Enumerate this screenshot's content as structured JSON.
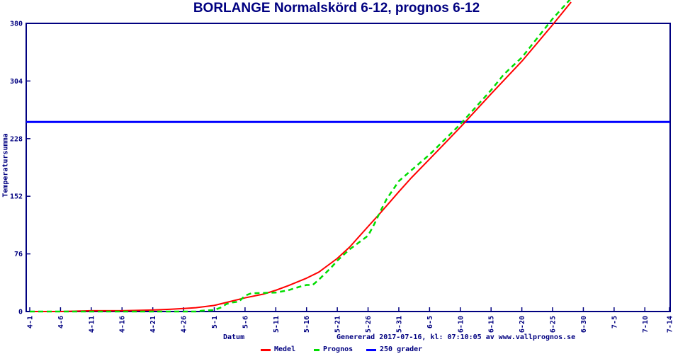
{
  "title": "BORLANGE Normalskörd 6-12, prognos 6-12",
  "footer": {
    "generated": "Genererad 2017-07-16, kl: 07:10:05 av www.vallprognos.se"
  },
  "colors": {
    "axis": "#000080",
    "text": "#000080",
    "medel": "#ff0000",
    "prognos": "#00dd00",
    "threshold": "#0000ff",
    "background": "#ffffff"
  },
  "chart_data": {
    "type": "line",
    "title": "BORLANGE Normalskörd 6-12, prognos 6-12",
    "xlabel": "Datum",
    "ylabel": "Temperatursumma",
    "ylim": [
      0,
      380
    ],
    "xlim_days": [
      0,
      104
    ],
    "grid": false,
    "legend_position": "bottom",
    "y_ticks": [
      0,
      76,
      152,
      228,
      304,
      380
    ],
    "x_ticks": [
      {
        "label": "4-1",
        "day": 0
      },
      {
        "label": "4-6",
        "day": 5
      },
      {
        "label": "4-11",
        "day": 10
      },
      {
        "label": "4-16",
        "day": 15
      },
      {
        "label": "4-21",
        "day": 20
      },
      {
        "label": "4-26",
        "day": 25
      },
      {
        "label": "5-1",
        "day": 30
      },
      {
        "label": "5-6",
        "day": 35
      },
      {
        "label": "5-11",
        "day": 40
      },
      {
        "label": "5-16",
        "day": 45
      },
      {
        "label": "5-21",
        "day": 50
      },
      {
        "label": "5-26",
        "day": 55
      },
      {
        "label": "5-31",
        "day": 60
      },
      {
        "label": "6-5",
        "day": 65
      },
      {
        "label": "6-10",
        "day": 70
      },
      {
        "label": "6-15",
        "day": 75
      },
      {
        "label": "6-20",
        "day": 80
      },
      {
        "label": "6-25",
        "day": 85
      },
      {
        "label": "6-30",
        "day": 90
      },
      {
        "label": "7-5",
        "day": 95
      },
      {
        "label": "7-10",
        "day": 100
      },
      {
        "label": "7-14",
        "day": 104
      }
    ],
    "series": [
      {
        "name": "Medel",
        "color": "#ff0000",
        "style": "solid",
        "width": 2,
        "points": [
          [
            0,
            0
          ],
          [
            5,
            0
          ],
          [
            10,
            1
          ],
          [
            15,
            1
          ],
          [
            20,
            2
          ],
          [
            23,
            3
          ],
          [
            25,
            4
          ],
          [
            27,
            5
          ],
          [
            30,
            8
          ],
          [
            32,
            12
          ],
          [
            35,
            18
          ],
          [
            38,
            23
          ],
          [
            40,
            28
          ],
          [
            42,
            34
          ],
          [
            45,
            44
          ],
          [
            47,
            52
          ],
          [
            50,
            70
          ],
          [
            52,
            85
          ],
          [
            55,
            112
          ],
          [
            57,
            130
          ],
          [
            60,
            158
          ],
          [
            62,
            176
          ],
          [
            65,
            201
          ],
          [
            70,
            243
          ],
          [
            75,
            287
          ],
          [
            80,
            330
          ],
          [
            85,
            378
          ],
          [
            88,
            408
          ]
        ]
      },
      {
        "name": "Prognos",
        "color": "#00dd00",
        "style": "dashed",
        "width": 2.5,
        "points": [
          [
            0,
            0
          ],
          [
            27,
            0
          ],
          [
            28,
            1
          ],
          [
            30,
            2
          ],
          [
            31,
            5
          ],
          [
            32,
            10
          ],
          [
            33,
            12
          ],
          [
            34,
            13
          ],
          [
            35,
            21
          ],
          [
            36,
            24
          ],
          [
            40,
            25
          ],
          [
            42,
            28
          ],
          [
            44,
            33
          ],
          [
            45,
            35
          ],
          [
            46,
            35
          ],
          [
            47,
            42
          ],
          [
            48,
            50
          ],
          [
            49,
            58
          ],
          [
            50,
            67
          ],
          [
            52,
            82
          ],
          [
            55,
            100
          ],
          [
            56,
            115
          ],
          [
            57,
            132
          ],
          [
            58,
            148
          ],
          [
            59,
            160
          ],
          [
            60,
            172
          ],
          [
            62,
            186
          ],
          [
            65,
            207
          ],
          [
            70,
            247
          ],
          [
            72,
            265
          ],
          [
            75,
            292
          ],
          [
            77,
            312
          ],
          [
            78,
            320
          ],
          [
            80,
            335
          ],
          [
            85,
            386
          ],
          [
            88,
            413
          ]
        ]
      },
      {
        "name": "250 grader",
        "color": "#0000ff",
        "style": "hline",
        "width": 3,
        "value": 250
      }
    ]
  },
  "legend": {
    "items": [
      {
        "label": "Medel",
        "color": "#ff0000",
        "swatch_width": 14,
        "x": 368
      },
      {
        "label": "Prognos",
        "color": "#00dd00",
        "swatch_width": 8,
        "x": 443
      },
      {
        "label": "250 grader",
        "color": "#0000ff",
        "swatch_width": 14,
        "x": 517
      }
    ]
  }
}
